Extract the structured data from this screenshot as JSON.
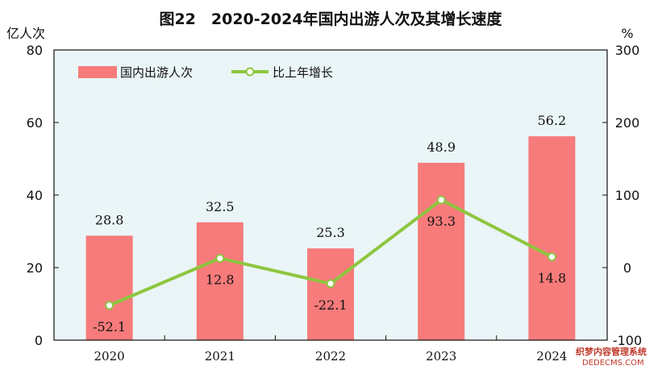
{
  "chart_data": {
    "type": "bar+line",
    "title": "图22　2020-2024年国内出游人次及其增长速度",
    "y_left_unit": "亿人次",
    "y_right_unit": "%",
    "categories": [
      "2020",
      "2021",
      "2022",
      "2023",
      "2024"
    ],
    "y_left_range": [
      0,
      80
    ],
    "y_left_ticks": [
      0,
      20,
      40,
      60,
      80
    ],
    "y_right_range": [
      -100,
      300
    ],
    "y_right_ticks": [
      -100,
      0,
      100,
      200,
      300
    ],
    "series": [
      {
        "name": "国内出游人次",
        "type": "bar",
        "axis": "left",
        "values": [
          28.8,
          32.5,
          25.3,
          48.9,
          56.2
        ],
        "labels": [
          "28.8",
          "32.5",
          "25.3",
          "48.9",
          "56.2"
        ],
        "color": "#f77b7b"
      },
      {
        "name": "比上年增长",
        "type": "line",
        "axis": "right",
        "values": [
          -52.1,
          12.8,
          -22.1,
          93.3,
          14.8
        ],
        "labels": [
          "-52.1",
          "12.8",
          "-22.1",
          "93.3",
          "14.8"
        ],
        "color": "#8dc63f"
      }
    ],
    "legend_position": "top-left",
    "plot_background": "#eaf5f7",
    "grid": false
  },
  "watermark": {
    "line1": "织梦内容管理系统",
    "line2": "DEDECMS.COM"
  }
}
